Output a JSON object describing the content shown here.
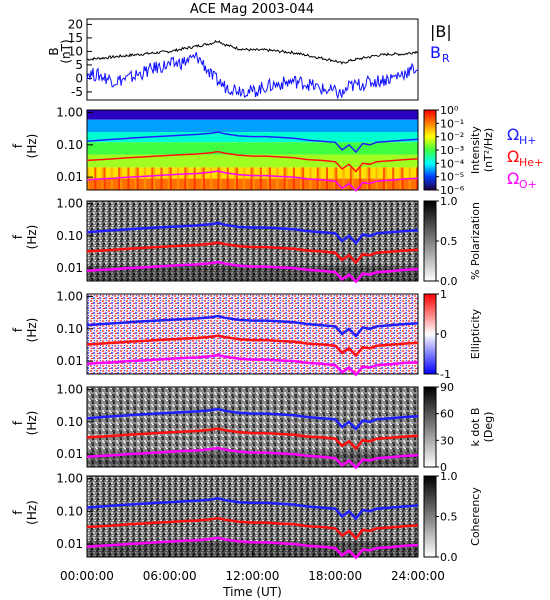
{
  "title": "ACE Mag 2003-044",
  "time_axis": {
    "label": "Time (UT)",
    "ticks": [
      "00:00:00",
      "06:00:00",
      "12:00:00",
      "18:00:00",
      "24:00:00"
    ],
    "range_hours": [
      0,
      24
    ]
  },
  "legend_top": {
    "B": "|B|",
    "BR": "B",
    "BR_sub": "R"
  },
  "legend_gyro": [
    {
      "sym": "Ω",
      "sub": "H+",
      "color": "#2020ff"
    },
    {
      "sym": "Ω",
      "sub": "He+",
      "color": "#ff1010"
    },
    {
      "sym": "Ω",
      "sub": "O+",
      "color": "#ff00ff"
    }
  ],
  "colors": {
    "B": "#000000",
    "BR": "#1010ff",
    "H": "#2020ff",
    "He": "#ff1010",
    "O": "#ff00ff"
  },
  "freq_axis": {
    "label": "f",
    "unit": "(Hz)",
    "ticks": [
      "1.00",
      "0.10",
      "0.01"
    ],
    "scale": "log",
    "range": [
      0.004,
      1.2
    ]
  },
  "chart_data": [
    {
      "type": "line",
      "name": "B field",
      "ylabel": "B",
      "yunit": "(nT)",
      "yticks": [
        "20",
        "15",
        "10",
        "5",
        "0",
        "-5"
      ],
      "ylim": [
        -8,
        22
      ],
      "series": [
        {
          "name": "|B|",
          "x": [
            0,
            1,
            2,
            3,
            4,
            5,
            6,
            7,
            8,
            9,
            9.5,
            10,
            11,
            12,
            13,
            14,
            15,
            16,
            17,
            18,
            18.5,
            19,
            20,
            21,
            22,
            23,
            24
          ],
          "y": [
            7,
            7.5,
            8,
            8.5,
            9,
            9.5,
            10,
            11,
            12,
            13,
            14,
            12.5,
            11,
            10.5,
            10.5,
            10,
            9.5,
            8.5,
            7.5,
            6.5,
            5.5,
            6.5,
            7.5,
            8.5,
            9,
            9,
            10
          ]
        },
        {
          "name": "B_R",
          "x": [
            0,
            1,
            2,
            3,
            4,
            5,
            6,
            7,
            8,
            8.5,
            9,
            9.5,
            10,
            11,
            12,
            13,
            14,
            15,
            16,
            17,
            18,
            18.5,
            19,
            20,
            21,
            22,
            23,
            24
          ],
          "y": [
            2,
            1,
            -1,
            0,
            2,
            4,
            5,
            6,
            8,
            5,
            1,
            -1,
            -3,
            -4,
            -5,
            -3,
            -2,
            -1,
            -2,
            -4,
            -5,
            -6,
            -3,
            -2,
            -1,
            0,
            2,
            4
          ]
        }
      ]
    },
    {
      "type": "heatmap",
      "name": "intensity",
      "colorbar_label": "Intensity",
      "colorbar_unit": "(nT²/Hz)",
      "colorbar_ticks": [
        "10⁰",
        "10⁻¹",
        "10⁻²",
        "10⁻³",
        "10⁻⁴",
        "10⁻⁵",
        "10⁻⁶"
      ]
    },
    {
      "type": "heatmap",
      "name": "polarization",
      "colorbar_label": "% Polarization",
      "colorbar_ticks": [
        "1.0",
        "0.5",
        "0.0"
      ]
    },
    {
      "type": "heatmap",
      "name": "ellipticity",
      "colorbar_label": "Ellipticity",
      "colorbar_ticks": [
        "1",
        "0",
        "-1"
      ]
    },
    {
      "type": "heatmap",
      "name": "kdotb",
      "colorbar_label": "k dot B",
      "colorbar_unit": "(Deg)",
      "colorbar_ticks": [
        "90",
        "60",
        "30",
        "0"
      ]
    },
    {
      "type": "heatmap",
      "name": "coherency",
      "colorbar_label": "Coherency",
      "colorbar_ticks": [
        "1.0",
        "0.5",
        "0.0"
      ]
    }
  ],
  "gyro_lines": {
    "x": [
      0,
      1,
      2,
      3,
      4,
      5,
      6,
      7,
      8,
      9,
      9.5,
      10,
      11,
      12,
      13,
      14,
      15,
      16,
      17,
      18,
      18.5,
      19,
      19.5,
      20,
      20.5,
      21,
      22,
      23,
      24
    ],
    "H": [
      0.13,
      0.14,
      0.15,
      0.16,
      0.17,
      0.18,
      0.19,
      0.2,
      0.21,
      0.23,
      0.25,
      0.22,
      0.19,
      0.18,
      0.18,
      0.17,
      0.16,
      0.14,
      0.13,
      0.12,
      0.07,
      0.1,
      0.06,
      0.11,
      0.1,
      0.12,
      0.13,
      0.14,
      0.15
    ],
    "He": [
      0.033,
      0.035,
      0.037,
      0.04,
      0.042,
      0.045,
      0.047,
      0.05,
      0.052,
      0.057,
      0.062,
      0.055,
      0.048,
      0.045,
      0.045,
      0.042,
      0.04,
      0.035,
      0.033,
      0.03,
      0.018,
      0.025,
      0.015,
      0.027,
      0.025,
      0.03,
      0.032,
      0.035,
      0.037
    ],
    "O": [
      0.0083,
      0.0088,
      0.0093,
      0.01,
      0.0105,
      0.0112,
      0.0118,
      0.0125,
      0.013,
      0.0143,
      0.0155,
      0.0137,
      0.012,
      0.0112,
      0.0112,
      0.0105,
      0.01,
      0.0088,
      0.0083,
      0.0075,
      0.0045,
      0.0063,
      0.0038,
      0.0068,
      0.0063,
      0.0075,
      0.008,
      0.0088,
      0.0093
    ]
  }
}
